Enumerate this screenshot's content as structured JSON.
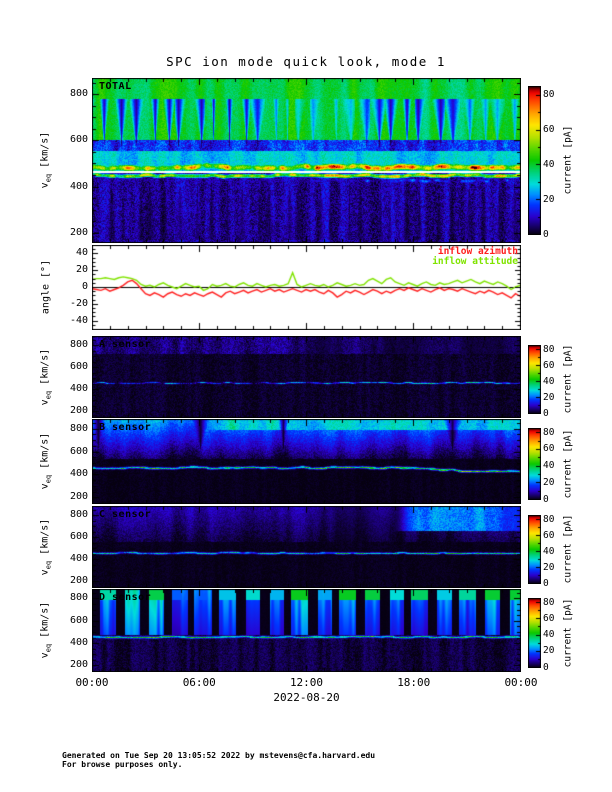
{
  "title": "SPC ion mode quick look, mode 1",
  "y_axis": {
    "main": "v",
    "sub": "eq",
    "unit": " [km/s]"
  },
  "angle_axis": {
    "label": "angle [°]"
  },
  "x_axis": {
    "tick_labels": [
      "00:00",
      "06:00",
      "12:00",
      "18:00",
      "00:00"
    ],
    "hours": [
      0,
      6,
      12,
      18,
      24
    ],
    "date_label": "2022-08-20"
  },
  "colorbar": {
    "label": "current [pA]",
    "ticks": [
      0,
      20,
      40,
      60,
      80
    ],
    "vmax": 85,
    "stops": [
      [
        0.0,
        "#060010"
      ],
      [
        0.05,
        "#16005f"
      ],
      [
        0.12,
        "#2b00cd"
      ],
      [
        0.2,
        "#0034ff"
      ],
      [
        0.27,
        "#0090ff"
      ],
      [
        0.34,
        "#00dcdc"
      ],
      [
        0.42,
        "#00d278"
      ],
      [
        0.5,
        "#0ac800"
      ],
      [
        0.58,
        "#5ad700"
      ],
      [
        0.66,
        "#b9e100"
      ],
      [
        0.74,
        "#ffe600"
      ],
      [
        0.82,
        "#ffa000"
      ],
      [
        0.9,
        "#ff4600"
      ],
      [
        0.955,
        "#f00500"
      ],
      [
        0.975,
        "#b40000"
      ],
      [
        1.0,
        "#1e0000"
      ]
    ]
  },
  "footer": {
    "line1": "Generated on Tue Sep 20 13:05:52 2022 by mstevens@cfa.harvard.edu",
    "line2": "For browse purposes only."
  },
  "chart_data": [
    {
      "id": "total",
      "label": "TOTAL",
      "type": "heatmap",
      "ylabel": "v_eq [km/s]",
      "units": "current [pA]",
      "vmin": 160,
      "vmax": 870,
      "yticks": [
        200,
        400,
        600,
        800
      ],
      "yminor": 50,
      "time_range_hours": [
        0,
        24
      ],
      "features": [
        {
          "t": "fill",
          "v0": 160,
          "v1": 460,
          "base": 8,
          "noise": 5,
          "colAmp": 4,
          "colScale": 5,
          "seed": 11
        },
        {
          "t": "fill",
          "v0": 460,
          "v1": 555,
          "base": 28,
          "noise": 4,
          "colAmp": 5,
          "colScale": 7,
          "seed": 12
        },
        {
          "t": "fill",
          "v0": 555,
          "v1": 605,
          "base": 15,
          "noise": 6,
          "colAmp": 6,
          "colScale": 6,
          "seed": 19
        },
        {
          "t": "fill",
          "v0": 605,
          "v1": 870,
          "base": 40,
          "noise": 3,
          "colAmp": 6,
          "colScale": 9,
          "seed": 13
        },
        {
          "t": "blobs",
          "vTop": 780,
          "vBot": 570,
          "period": 15,
          "wmax": 6,
          "mult": 0.18,
          "seed": 14,
          "env": [
            [
              0,
              1
            ],
            [
              0.35,
              1
            ],
            [
              0.45,
              0.45
            ],
            [
              0.62,
              0.5
            ],
            [
              0.68,
              1
            ],
            [
              0.82,
              1
            ],
            [
              0.9,
              0.55
            ],
            [
              1,
              0.6
            ]
          ]
        },
        {
          "t": "blobs",
          "vTop": 420,
          "vBot": 170,
          "period": 15,
          "wmax": 6,
          "mult": 0.5,
          "seed": 15,
          "dir": "up"
        },
        {
          "t": "band",
          "c": 487,
          "hw": 18,
          "base": 52,
          "varAmp": 20,
          "noise": 6,
          "wAmp": 7,
          "wScale": 14,
          "seed": 16,
          "tboost": [
            [
              0,
              0
            ],
            [
              0.25,
              4
            ],
            [
              0.45,
              10
            ],
            [
              0.6,
              16
            ],
            [
              0.85,
              16
            ],
            [
              1,
              10
            ]
          ]
        },
        {
          "t": "band",
          "c": 450,
          "hw": 11,
          "base": 46,
          "varAmp": 16,
          "noise": 6,
          "wAmp": 5,
          "wScale": 11,
          "seed": 17,
          "tboost": [
            [
              0,
              0
            ],
            [
              0.3,
              4
            ],
            [
              0.55,
              12
            ],
            [
              1,
              12
            ]
          ]
        },
        {
          "t": "band",
          "c": 428,
          "hw": 9,
          "base": 10,
          "varAmp": 14,
          "noise": 5,
          "wAmp": 4,
          "wScale": 9,
          "seed": 18,
          "env": [
            [
              0,
              0.3
            ],
            [
              0.5,
              0.4
            ],
            [
              0.6,
              1
            ],
            [
              1,
              1
            ]
          ]
        },
        {
          "t": "white",
          "v": 466,
          "hw": 4
        }
      ]
    },
    {
      "id": "angle",
      "label": "",
      "type": "line",
      "ymin": -50,
      "ymax": 50,
      "yticks": [
        -40,
        -20,
        0,
        20,
        40
      ],
      "yminor": 5,
      "time_range_hours": [
        0,
        24
      ],
      "zero_line": true,
      "series": [
        {
          "name": "inflow azimuth",
          "color": "#ff1e1e",
          "values": [
            -2,
            -3,
            -4,
            -2,
            -5,
            -3,
            -1,
            2,
            6,
            8,
            4,
            -2,
            -8,
            -10,
            -7,
            -9,
            -12,
            -8,
            -6,
            -9,
            -11,
            -8,
            -10,
            -7,
            -9,
            -11,
            -8,
            -6,
            -9,
            -12,
            -7,
            -5,
            -8,
            -6,
            -4,
            -7,
            -5,
            -3,
            -6,
            -4,
            -2,
            -5,
            -3,
            -6,
            -4,
            -2,
            -4,
            -6,
            -3,
            -5,
            -3,
            -6,
            -8,
            -4,
            -7,
            -12,
            -9,
            -5,
            -7,
            -4,
            -6,
            -9,
            -6,
            -3,
            -5,
            -8,
            -5,
            -7,
            -4,
            -2,
            -4,
            -1,
            -3,
            -5,
            -2,
            -4,
            -6,
            -3,
            -1,
            -4,
            -2,
            -3,
            -5,
            -2,
            -4,
            -6,
            -8,
            -5,
            -7,
            -4,
            -6,
            -9,
            -7,
            -10,
            -13,
            -8,
            -11
          ]
        },
        {
          "name": "inflow attitude",
          "color": "#80e400",
          "values": [
            9,
            10,
            10,
            11,
            10,
            9,
            11,
            12,
            11,
            10,
            8,
            3,
            1,
            2,
            0,
            3,
            5,
            2,
            0,
            -2,
            1,
            4,
            2,
            0,
            1,
            -4,
            -2,
            3,
            1,
            2,
            4,
            1,
            0,
            3,
            5,
            2,
            1,
            4,
            2,
            0,
            2,
            3,
            1,
            2,
            4,
            17,
            3,
            0,
            2,
            4,
            2,
            1,
            3,
            0,
            2,
            5,
            3,
            1,
            2,
            4,
            2,
            3,
            8,
            10,
            7,
            4,
            9,
            11,
            6,
            4,
            2,
            5,
            3,
            1,
            4,
            6,
            3,
            2,
            5,
            3,
            4,
            6,
            8,
            5,
            7,
            9,
            6,
            4,
            7,
            5,
            3,
            6,
            4,
            1,
            -3,
            0,
            2
          ]
        }
      ]
    },
    {
      "id": "a",
      "label": "A sensor",
      "type": "heatmap",
      "ylabel": "v_eq [km/s]",
      "units": "current [pA]",
      "vmin": 150,
      "vmax": 885,
      "yticks": [
        200,
        400,
        600,
        800
      ],
      "yminor": 50,
      "time_range_hours": [
        0,
        24
      ],
      "features": [
        {
          "t": "fill",
          "v0": 150,
          "v1": 885,
          "base": 1.5,
          "noise": 2,
          "colAmp": 1,
          "colScale": 4,
          "seed": 21
        },
        {
          "t": "fill",
          "v0": 730,
          "v1": 885,
          "base": 6,
          "noise": 4,
          "colAmp": 3,
          "colScale": 6,
          "seed": 22,
          "env": [
            [
              0,
              1
            ],
            [
              0.45,
              1
            ],
            [
              0.55,
              0.45
            ],
            [
              0.62,
              0.8
            ],
            [
              0.72,
              0.35
            ],
            [
              0.82,
              0.7
            ],
            [
              0.9,
              0.3
            ],
            [
              1,
              0.55
            ]
          ]
        },
        {
          "t": "band",
          "c": 463,
          "hw": 14,
          "base": 7,
          "varAmp": 5,
          "noise": 4,
          "wAmp": 6,
          "wScale": 9,
          "seed": 23,
          "env": [
            [
              0,
              0.6
            ],
            [
              0.5,
              0.8
            ],
            [
              1,
              1
            ]
          ]
        },
        {
          "t": "band",
          "c": 463,
          "hw": 7,
          "base": 16,
          "varAmp": 13,
          "noise": 7,
          "wAmp": 6,
          "wScale": 9,
          "seed": 23,
          "tboost": [
            [
              0,
              0
            ],
            [
              0.45,
              2
            ],
            [
              0.6,
              9
            ],
            [
              0.8,
              11
            ],
            [
              1,
              9
            ]
          ]
        }
      ]
    },
    {
      "id": "b",
      "label": "B sensor",
      "type": "heatmap",
      "ylabel": "v_eq [km/s]",
      "units": "current [pA]",
      "vmin": 150,
      "vmax": 885,
      "yticks": [
        200,
        400,
        600,
        800
      ],
      "yminor": 50,
      "time_range_hours": [
        0,
        24
      ],
      "features": [
        {
          "t": "fill",
          "v0": 150,
          "v1": 885,
          "base": 0.6,
          "noise": 1,
          "colAmp": 0.5,
          "colScale": 4,
          "seed": 31
        },
        {
          "t": "gradient",
          "v0": 540,
          "v1": 885,
          "val0": 3,
          "val1": 24,
          "noise": 3,
          "colAmp": 4,
          "colScale": 8,
          "seed": 32
        },
        {
          "t": "fill",
          "v0": 790,
          "v1": 885,
          "base": 30,
          "noise": 4,
          "colAmp": 5,
          "colScale": 10,
          "seed": 33,
          "env": [
            [
              0,
              0.25
            ],
            [
              0.24,
              0.3
            ],
            [
              0.3,
              1
            ],
            [
              0.55,
              0.9
            ],
            [
              0.75,
              1
            ],
            [
              1,
              0.85
            ]
          ]
        },
        {
          "t": "blobs",
          "vTop": 880,
          "vBot": 620,
          "period": 110,
          "wmax": 7,
          "mult": 0.1,
          "seed": 34
        },
        {
          "t": "band",
          "c": 462,
          "hw": 16,
          "base": 16,
          "varAmp": 7,
          "noise": 5,
          "wAmp": 8,
          "wScale": 10,
          "seed": 35,
          "drift": [
            [
              0,
              0
            ],
            [
              0.7,
              0
            ],
            [
              0.85,
              -25
            ],
            [
              1,
              -28
            ]
          ]
        },
        {
          "t": "band",
          "c": 462,
          "hw": 8,
          "base": 38,
          "varAmp": 13,
          "noise": 6,
          "wAmp": 8,
          "wScale": 10,
          "seed": 35,
          "drift": [
            [
              0,
              0
            ],
            [
              0.7,
              0
            ],
            [
              0.85,
              -25
            ],
            [
              1,
              -28
            ]
          ],
          "tboost": [
            [
              0,
              0
            ],
            [
              0.5,
              2
            ],
            [
              0.8,
              6
            ],
            [
              1,
              8
            ]
          ]
        }
      ]
    },
    {
      "id": "c",
      "label": "C sensor",
      "type": "heatmap",
      "ylabel": "v_eq [km/s]",
      "units": "current [pA]",
      "vmin": 150,
      "vmax": 885,
      "yticks": [
        200,
        400,
        600,
        800
      ],
      "yminor": 50,
      "time_range_hours": [
        0,
        24
      ],
      "features": [
        {
          "t": "fill",
          "v0": 150,
          "v1": 885,
          "base": 0.6,
          "noise": 1,
          "colAmp": 0.5,
          "colScale": 4,
          "seed": 41
        },
        {
          "t": "gradient",
          "v0": 560,
          "v1": 885,
          "val0": 2,
          "val1": 9,
          "noise": 2.5,
          "colAmp": 3,
          "colScale": 7,
          "seed": 42,
          "env": [
            [
              0,
              1
            ],
            [
              0.5,
              0.9
            ],
            [
              0.6,
              0.5
            ],
            [
              0.72,
              0.7
            ],
            [
              1,
              1
            ]
          ]
        },
        {
          "t": "fill",
          "v0": 660,
          "v1": 885,
          "base": 24,
          "noise": 4,
          "colAmp": 5,
          "colScale": 9,
          "seed": 43,
          "env": [
            [
              0,
              0
            ],
            [
              0.7,
              0
            ],
            [
              0.76,
              1
            ],
            [
              0.93,
              1
            ],
            [
              1,
              0.5
            ]
          ]
        },
        {
          "t": "band",
          "c": 461,
          "hw": 15,
          "base": 12,
          "varAmp": 6,
          "noise": 4,
          "wAmp": 6,
          "wScale": 10,
          "seed": 44
        },
        {
          "t": "band",
          "c": 461,
          "hw": 7,
          "base": 30,
          "varAmp": 12,
          "noise": 6,
          "wAmp": 6,
          "wScale": 10,
          "seed": 44,
          "tboost": [
            [
              0,
              2
            ],
            [
              0.25,
              -4
            ],
            [
              0.45,
              0
            ],
            [
              0.7,
              6
            ],
            [
              1,
              6
            ]
          ]
        }
      ]
    },
    {
      "id": "d",
      "label": "D sensor",
      "type": "heatmap",
      "ylabel": "v_eq [km/s]",
      "units": "current [pA]",
      "vmin": 150,
      "vmax": 885,
      "yticks": [
        200,
        400,
        600,
        800
      ],
      "yminor": 50,
      "time_range_hours": [
        0,
        24
      ],
      "features": [
        {
          "t": "fill",
          "v0": 150,
          "v1": 885,
          "base": 2.5,
          "noise": 2.5,
          "colAmp": 2,
          "colScale": 4,
          "seed": 51
        },
        {
          "t": "vstripes",
          "v0": 480,
          "v1": 885,
          "period": 24,
          "gap": 0.32,
          "base": 15,
          "noise": 5,
          "topV": 790,
          "topVal": 38,
          "seed": 52
        },
        {
          "t": "band",
          "c": 458,
          "hw": 16,
          "base": 18,
          "varAmp": 6,
          "noise": 5,
          "wAmp": 5,
          "wScale": 9,
          "seed": 53
        },
        {
          "t": "band",
          "c": 458,
          "hw": 8,
          "base": 40,
          "varAmp": 10,
          "noise": 6,
          "wAmp": 5,
          "wScale": 9,
          "seed": 53
        }
      ]
    }
  ]
}
